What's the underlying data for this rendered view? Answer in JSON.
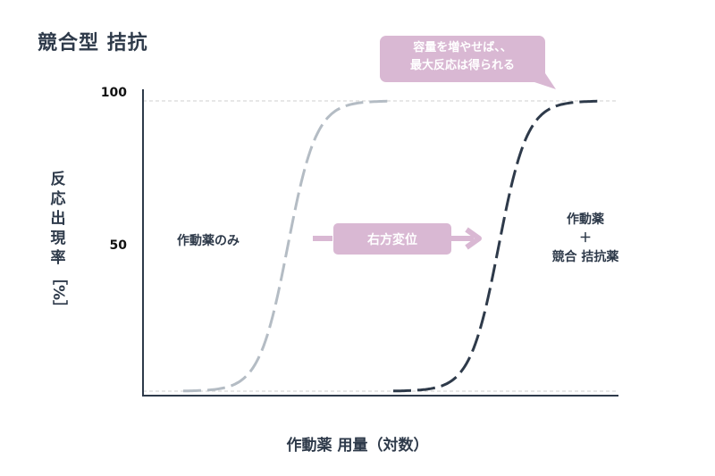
{
  "title": "競合型 拮抗",
  "y_axis": {
    "label_chars": [
      "反",
      "応",
      "出",
      "現",
      "率"
    ],
    "unit": "［%］",
    "ticks": [
      "100",
      "50"
    ]
  },
  "x_axis": {
    "label": "作動薬 用量（対数）"
  },
  "callout": {
    "line1": "容量を増やせば、、",
    "line2": "最大反応は得られる"
  },
  "shift_arrow": {
    "label": "右方変位"
  },
  "curve_labels": {
    "agonist_only": "作動薬のみ",
    "combined_line1": "作動薬",
    "combined_line2": "＋",
    "combined_line3": "競合 拮抗薬"
  },
  "colors": {
    "text": "#2e3a4a",
    "agonist_curve": "#b4bcc4",
    "antagonist_curve": "#2e3a4a",
    "accent_pink": "#d9b8d3",
    "grid": "#cfcfcf"
  }
}
